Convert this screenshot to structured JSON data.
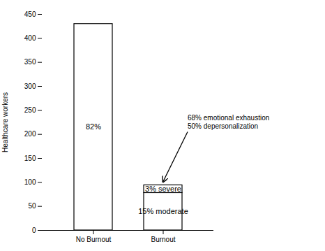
{
  "chart_data": {
    "type": "bar",
    "stacked": true,
    "categories": [
      "No Burnout",
      "Burnout"
    ],
    "series": [
      {
        "values": [
          430,
          78
        ],
        "segment_labels": [
          "82%",
          "15% moderate"
        ]
      },
      {
        "values": [
          null,
          16
        ],
        "segment_labels": [
          null,
          "3% severe"
        ]
      }
    ],
    "color": "white",
    "ylabel": "Healthcare workers",
    "ylim": [
      0,
      450
    ],
    "yticks": [
      0,
      50,
      100,
      150,
      200,
      250,
      300,
      350,
      400,
      450
    ],
    "annotations": [
      {
        "text": "68% emotional exhaustion\n50% depersonalization",
        "target": "Burnout"
      }
    ]
  }
}
